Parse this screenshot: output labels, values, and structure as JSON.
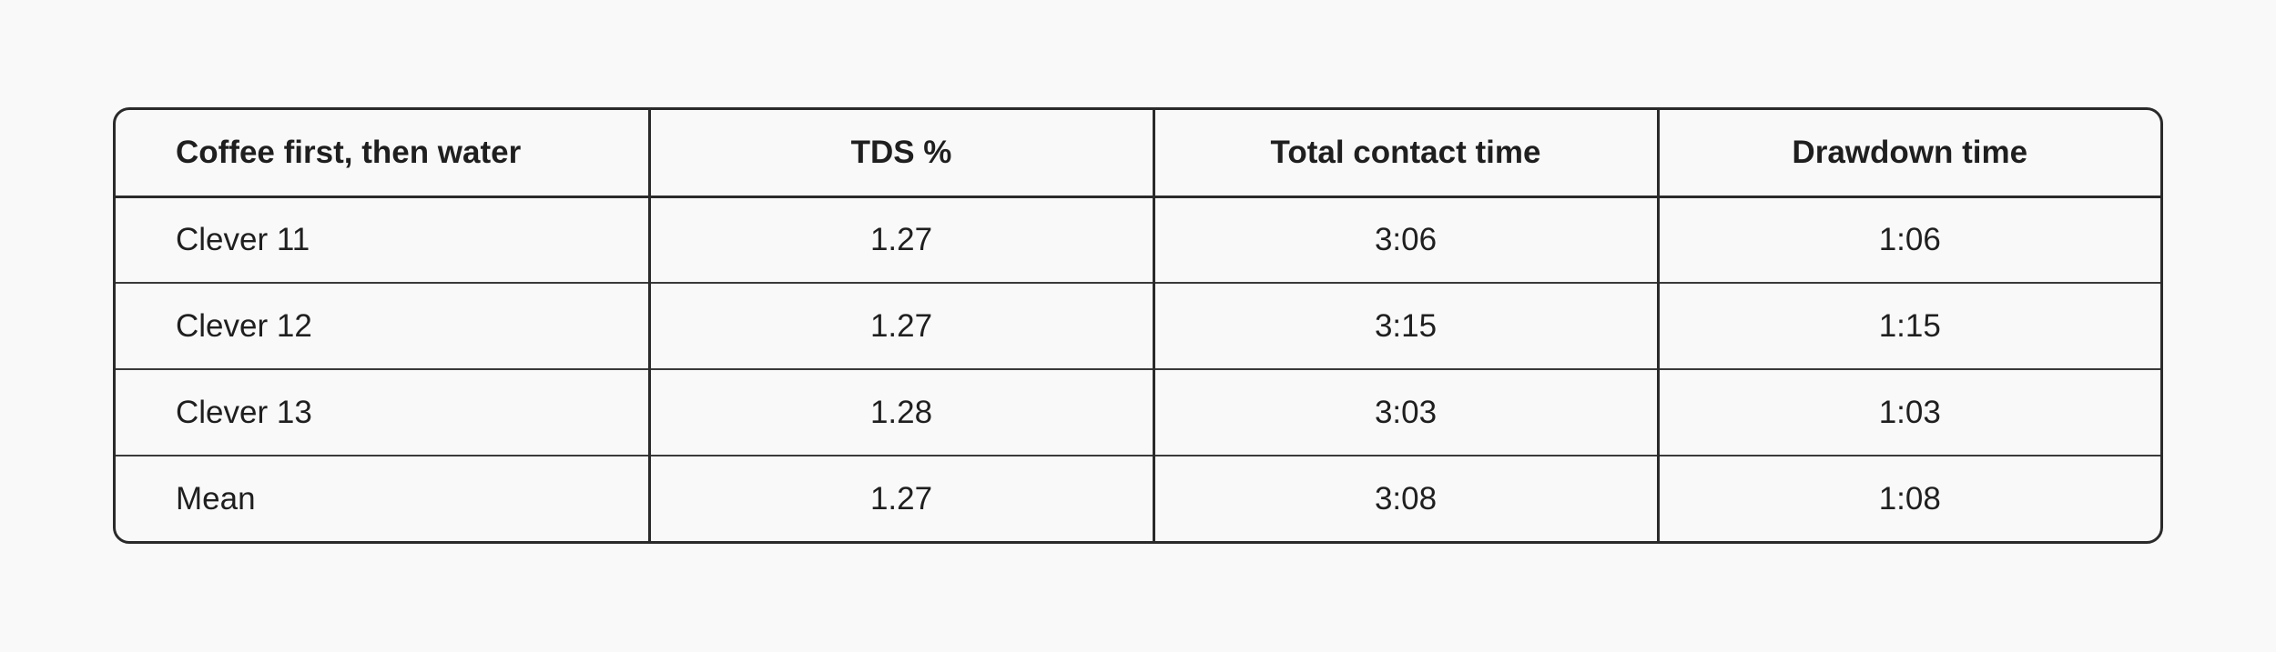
{
  "table": {
    "headers": [
      "Coffee first, then water",
      "TDS %",
      "Total contact time",
      "Drawdown time"
    ],
    "rows": [
      [
        "Clever 11",
        "1.27",
        "3:06",
        "1:06"
      ],
      [
        "Clever 12",
        "1.27",
        "3:15",
        "1:15"
      ],
      [
        "Clever 13",
        "1.28",
        "3:03",
        "1:03"
      ],
      [
        "Mean",
        "1.27",
        "3:08",
        "1:08"
      ]
    ]
  }
}
